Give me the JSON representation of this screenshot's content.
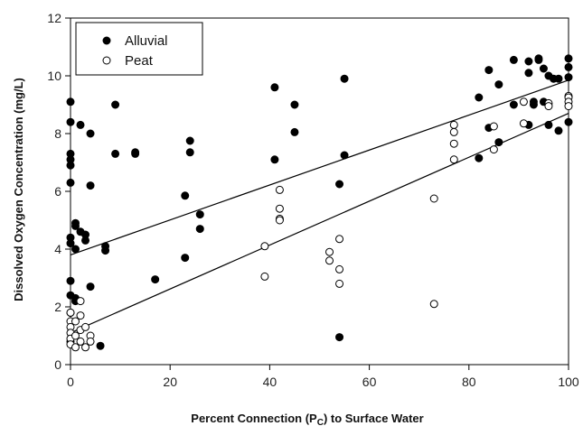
{
  "chart_data": {
    "type": "scatter",
    "xlabel": "Percent Connection (P",
    "xlabel_sub": "C",
    "xlabel_tail": ") to Surface Water",
    "ylabel": "Dissolved Oxygen Concentration (mg/L)",
    "xlim": [
      0,
      100
    ],
    "ylim": [
      0,
      12
    ],
    "x_ticks": [
      0,
      20,
      40,
      60,
      80,
      100
    ],
    "y_ticks": [
      0,
      2,
      4,
      6,
      8,
      10,
      12
    ],
    "grid": false,
    "legend_position": "top-left",
    "series": [
      {
        "name": "Alluvial",
        "marker": "filled-circle",
        "color": "#000000",
        "points": [
          [
            0,
            9.1
          ],
          [
            0,
            8.4
          ],
          [
            0,
            7.3
          ],
          [
            0,
            7.1
          ],
          [
            0,
            6.9
          ],
          [
            0,
            6.3
          ],
          [
            0,
            4.4
          ],
          [
            0,
            4.2
          ],
          [
            0,
            2.9
          ],
          [
            0,
            2.4
          ],
          [
            0,
            1.8
          ],
          [
            0,
            0.8
          ],
          [
            1,
            4.9
          ],
          [
            1,
            4.8
          ],
          [
            1,
            4.0
          ],
          [
            1,
            2.3
          ],
          [
            1,
            2.2
          ],
          [
            2,
            8.3
          ],
          [
            2,
            4.6
          ],
          [
            3,
            4.5
          ],
          [
            3,
            4.3
          ],
          [
            4,
            8.0
          ],
          [
            4,
            6.2
          ],
          [
            4,
            2.7
          ],
          [
            6,
            0.65
          ],
          [
            7,
            4.1
          ],
          [
            7,
            3.95
          ],
          [
            9,
            9.0
          ],
          [
            9,
            7.3
          ],
          [
            13,
            7.3
          ],
          [
            13,
            7.35
          ],
          [
            17,
            2.95
          ],
          [
            23,
            5.85
          ],
          [
            23,
            3.7
          ],
          [
            24,
            7.75
          ],
          [
            24,
            7.35
          ],
          [
            26,
            5.2
          ],
          [
            26,
            4.7
          ],
          [
            41,
            9.6
          ],
          [
            41,
            7.1
          ],
          [
            45,
            9.0
          ],
          [
            45,
            8.05
          ],
          [
            54,
            6.25
          ],
          [
            54,
            0.95
          ],
          [
            55,
            9.9
          ],
          [
            55,
            7.25
          ],
          [
            82,
            9.25
          ],
          [
            82,
            7.15
          ],
          [
            84,
            10.2
          ],
          [
            84,
            8.2
          ],
          [
            86,
            9.7
          ],
          [
            86,
            7.7
          ],
          [
            89,
            10.55
          ],
          [
            89,
            9.0
          ],
          [
            92,
            10.5
          ],
          [
            92,
            10.1
          ],
          [
            92,
            8.3
          ],
          [
            93,
            9.1
          ],
          [
            93,
            9.0
          ],
          [
            94,
            10.55
          ],
          [
            94,
            10.6
          ],
          [
            95,
            10.25
          ],
          [
            95,
            9.1
          ],
          [
            96,
            10.0
          ],
          [
            96,
            8.3
          ],
          [
            97,
            9.9
          ],
          [
            98,
            9.9
          ],
          [
            98,
            8.1
          ],
          [
            100,
            10.6
          ],
          [
            100,
            10.3
          ],
          [
            100,
            9.95
          ],
          [
            100,
            8.4
          ]
        ],
        "trendline": {
          "x": [
            0,
            100
          ],
          "y": [
            3.8,
            9.85
          ]
        }
      },
      {
        "name": "Peat",
        "marker": "open-circle",
        "color": "#000000",
        "points": [
          [
            0,
            1.8
          ],
          [
            0,
            1.5
          ],
          [
            0,
            1.3
          ],
          [
            0,
            1.1
          ],
          [
            0,
            0.9
          ],
          [
            0,
            0.7
          ],
          [
            1,
            1.5
          ],
          [
            1,
            1.0
          ],
          [
            1,
            0.6
          ],
          [
            2,
            2.2
          ],
          [
            2,
            1.7
          ],
          [
            2,
            1.2
          ],
          [
            2,
            0.8
          ],
          [
            3,
            1.3
          ],
          [
            3,
            0.6
          ],
          [
            4,
            1.0
          ],
          [
            4,
            0.8
          ],
          [
            39,
            4.1
          ],
          [
            39,
            3.05
          ],
          [
            42,
            6.05
          ],
          [
            42,
            5.4
          ],
          [
            42,
            5.05
          ],
          [
            42,
            5.0
          ],
          [
            52,
            3.9
          ],
          [
            52,
            3.6
          ],
          [
            54,
            4.35
          ],
          [
            54,
            3.3
          ],
          [
            54,
            2.8
          ],
          [
            73,
            5.75
          ],
          [
            73,
            2.1
          ],
          [
            77,
            8.3
          ],
          [
            77,
            8.05
          ],
          [
            77,
            7.65
          ],
          [
            77,
            7.1
          ],
          [
            85,
            8.25
          ],
          [
            85,
            7.45
          ],
          [
            91,
            9.1
          ],
          [
            91,
            8.35
          ],
          [
            96,
            9.05
          ],
          [
            96,
            8.95
          ],
          [
            100,
            9.3
          ],
          [
            100,
            9.25
          ],
          [
            100,
            9.1
          ],
          [
            100,
            8.95
          ]
        ],
        "trendline": {
          "x": [
            0,
            100
          ],
          "y": [
            1.1,
            8.7
          ]
        }
      }
    ]
  }
}
